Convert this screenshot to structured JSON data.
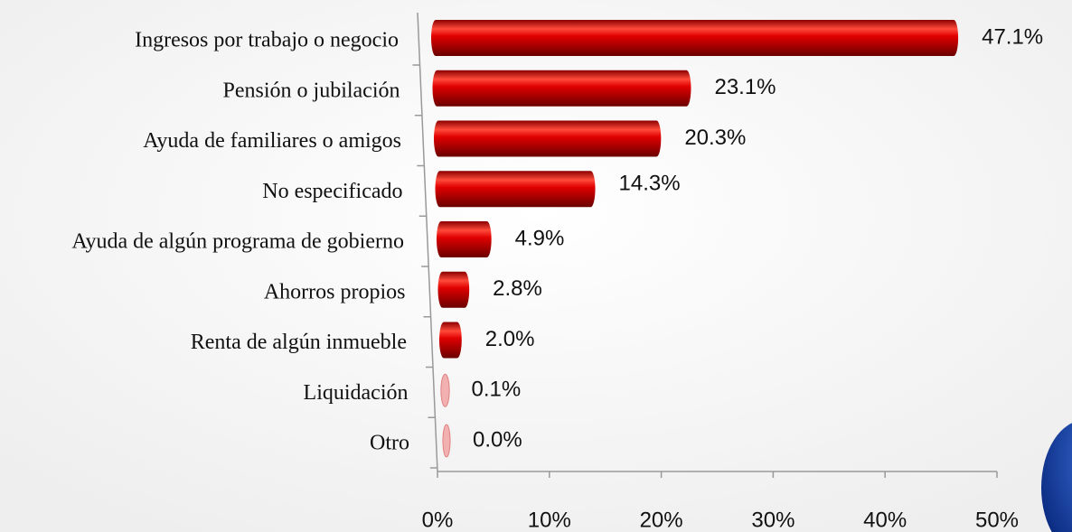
{
  "chart_data": {
    "type": "bar",
    "orientation": "horizontal",
    "categories": [
      "Ingresos por trabajo o negocio",
      "Pensión o jubilación",
      "Ayuda de familiares o amigos",
      "No especificado",
      "Ayuda de algún programa de gobierno",
      "Ahorros propios",
      "Renta de algún inmueble",
      "Liquidación",
      "Otro"
    ],
    "values": [
      47.1,
      23.1,
      20.3,
      14.3,
      4.9,
      2.8,
      2.0,
      0.1,
      0.0
    ],
    "value_labels": [
      "47.1%",
      "23.1%",
      "20.3%",
      "14.3%",
      "4.9%",
      "2.8%",
      "2.0%",
      "0.1%",
      "0.0%"
    ],
    "color": "#d40000",
    "xlim": [
      0,
      50
    ],
    "xticks": [
      {
        "value": 0,
        "label": "0%"
      },
      {
        "value": 10,
        "label": "10%"
      },
      {
        "value": 20,
        "label": "20%"
      },
      {
        "value": 30,
        "label": "30%"
      },
      {
        "value": 40,
        "label": "40%"
      },
      {
        "value": 50,
        "label": "50%"
      }
    ]
  }
}
